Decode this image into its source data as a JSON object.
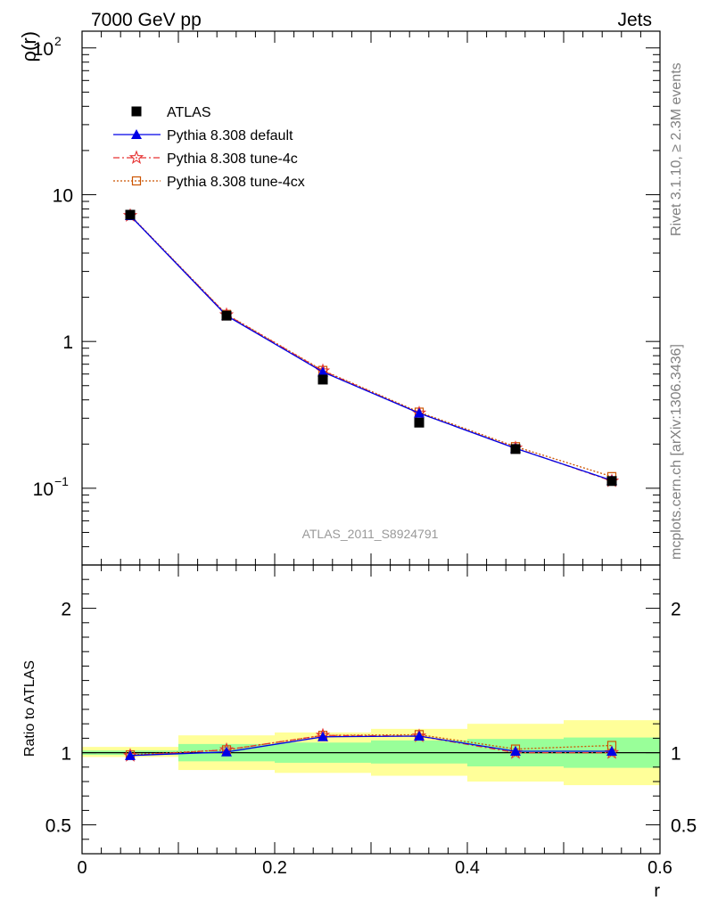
{
  "header": {
    "left_label": "7000 GeV pp",
    "right_label": "Jets"
  },
  "side_labels": {
    "rivet": "Rivet 3.1.10, ≥ 2.3M events",
    "mcplots": "mcplots.cern.ch [arXiv:1306.3436]"
  },
  "watermark": "ATLAS_2011_S8924791",
  "colors": {
    "atlas": "#000000",
    "default": "#0000e6",
    "tune4c": "#e63333",
    "tune4cx": "#cc5500",
    "band_stat": "#99ff99",
    "band_total": "#ffff99"
  },
  "chart_data": [
    {
      "type": "line",
      "scale": "log",
      "ylabel": "ρ(r)",
      "xlim": [
        0,
        0.6
      ],
      "ylim": [
        0.03,
        130
      ],
      "y_ticks": [
        {
          "value": 100,
          "base": "10",
          "exp": "2"
        },
        {
          "value": 10,
          "base": "10",
          "exp": ""
        },
        {
          "value": 1,
          "base": "1",
          "exp": ""
        },
        {
          "value": 0.1,
          "base": "10",
          "exp": "−1"
        }
      ],
      "legend_position": "top-left",
      "x": [
        0.05,
        0.15,
        0.25,
        0.35,
        0.45,
        0.55
      ],
      "series": [
        {
          "key": "atlas",
          "name": "ATLAS",
          "values": [
            7.3,
            1.5,
            0.55,
            0.28,
            0.185,
            0.112
          ]
        },
        {
          "key": "default",
          "name": "Pythia 8.308 default",
          "values": [
            7.2,
            1.5,
            0.62,
            0.325,
            0.187,
            0.113
          ]
        },
        {
          "key": "tune4c",
          "name": "Pythia 8.308 tune-4c",
          "values": [
            7.2,
            1.52,
            0.63,
            0.325,
            0.188,
            0.112
          ]
        },
        {
          "key": "tune4cx",
          "name": "Pythia 8.308 tune-4cx",
          "values": [
            7.25,
            1.53,
            0.635,
            0.33,
            0.192,
            0.12
          ]
        }
      ]
    },
    {
      "type": "line",
      "xlabel": "r",
      "ylabel": "Ratio to ATLAS",
      "xlim": [
        0,
        0.6
      ],
      "ylim": [
        0.3,
        2.3
      ],
      "y_ticks": [
        0.5,
        1,
        2
      ],
      "x_ticks": [
        0,
        0.2,
        0.4,
        0.6
      ],
      "x": [
        0.05,
        0.15,
        0.25,
        0.35,
        0.45,
        0.55
      ],
      "bands": [
        {
          "x0": 0.0,
          "x1": 0.1,
          "stat": [
            0.985,
            1.015
          ],
          "total": [
            0.97,
            1.04
          ]
        },
        {
          "x0": 0.1,
          "x1": 0.2,
          "stat": [
            0.94,
            1.06
          ],
          "total": [
            0.88,
            1.12
          ]
        },
        {
          "x0": 0.2,
          "x1": 0.3,
          "stat": [
            0.93,
            1.07
          ],
          "total": [
            0.86,
            1.14
          ]
        },
        {
          "x0": 0.3,
          "x1": 0.4,
          "stat": [
            0.925,
            1.085
          ],
          "total": [
            0.84,
            1.165
          ]
        },
        {
          "x0": 0.4,
          "x1": 0.5,
          "stat": [
            0.905,
            1.095
          ],
          "total": [
            0.8,
            1.2
          ]
        },
        {
          "x0": 0.5,
          "x1": 0.6,
          "stat": [
            0.895,
            1.105
          ],
          "total": [
            0.775,
            1.225
          ]
        }
      ],
      "series": [
        {
          "key": "default",
          "name": "Pythia 8.308 default",
          "values": [
            0.98,
            1.005,
            1.11,
            1.115,
            1.01,
            1.01
          ]
        },
        {
          "key": "tune4c",
          "name": "Pythia 8.308 tune-4c",
          "values": [
            0.98,
            1.02,
            1.12,
            1.115,
            1.0,
            1.0
          ]
        },
        {
          "key": "tune4cx",
          "name": "Pythia 8.308 tune-4cx",
          "values": [
            0.985,
            1.02,
            1.12,
            1.125,
            1.025,
            1.05
          ]
        }
      ]
    }
  ]
}
